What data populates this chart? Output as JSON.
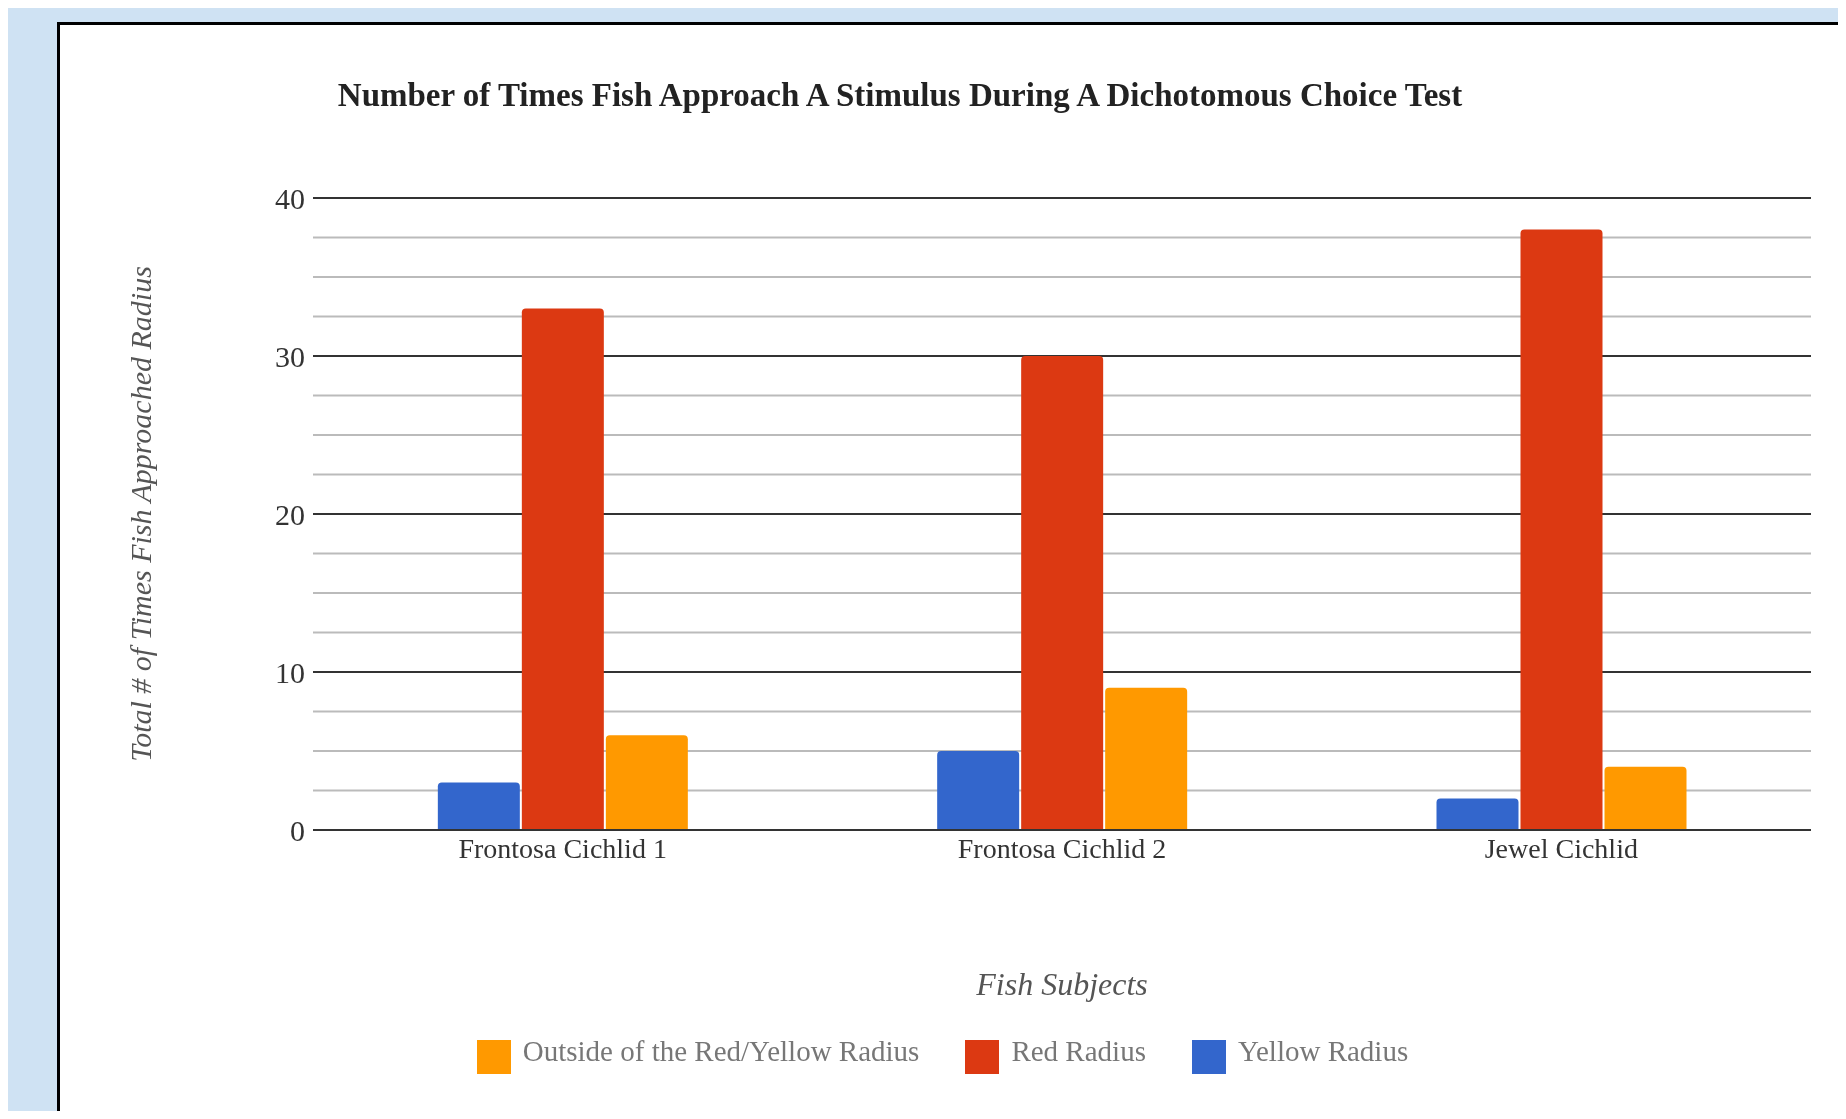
{
  "chart_data": {
    "type": "bar",
    "title": "Number of Times Fish Approach A Stimulus During A Dichotomous Choice Test",
    "xlabel": "Fish Subjects",
    "ylabel": "Total # of Times Fish Approached Radius",
    "categories": [
      "Frontosa Cichlid 1",
      "Frontosa Cichlid 2",
      "Jewel Cichlid"
    ],
    "series": [
      {
        "name": "Yellow Radius",
        "color": "#3366cc",
        "values": [
          3,
          5,
          2
        ]
      },
      {
        "name": "Red Radius",
        "color": "#dc3912",
        "values": [
          33,
          30,
          38
        ]
      },
      {
        "name": "Outside of the Red/Yellow Radius",
        "color": "#ff9900",
        "values": [
          6,
          9,
          4
        ]
      }
    ],
    "ylim": [
      0,
      40
    ],
    "yticks": [
      0,
      10,
      20,
      30,
      40
    ],
    "grid": "y",
    "legend": "bottom"
  }
}
